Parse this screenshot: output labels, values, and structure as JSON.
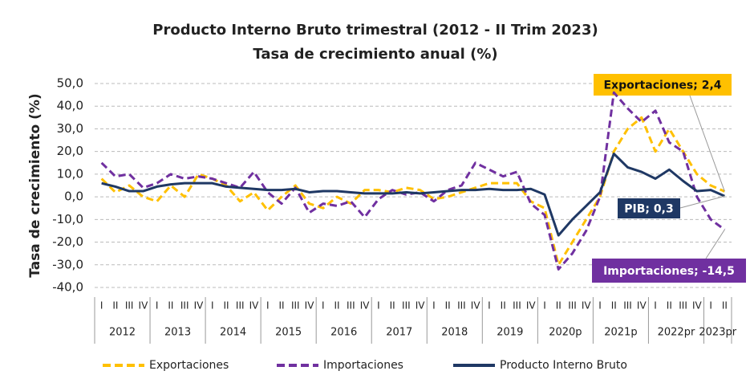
{
  "chart_data": {
    "type": "line",
    "title": "Producto Interno Bruto trimestral (2012 - II Trim 2023)",
    "subtitle": "Tasa de crecimiento anual (%)",
    "y_label": "Tasa de crecimiento (%)",
    "categories": [
      "I",
      "II",
      "III",
      "IV",
      "I",
      "II",
      "III",
      "IV",
      "I",
      "II",
      "III",
      "IV",
      "I",
      "II",
      "III",
      "IV",
      "I",
      "II",
      "III",
      "IV",
      "I",
      "II",
      "III",
      "IV",
      "I",
      "II",
      "III",
      "IV",
      "I",
      "II",
      "III",
      "IV",
      "I",
      "II",
      "III",
      "IV",
      "I",
      "II",
      "III",
      "IV",
      "I",
      "II",
      "III",
      "IV",
      "I",
      "II"
    ],
    "category_groups": [
      {
        "label": "2012",
        "count": 4
      },
      {
        "label": "2013",
        "count": 4
      },
      {
        "label": "2014",
        "count": 4
      },
      {
        "label": "2015",
        "count": 4
      },
      {
        "label": "2016",
        "count": 4
      },
      {
        "label": "2017",
        "count": 4
      },
      {
        "label": "2018",
        "count": 4
      },
      {
        "label": "2019",
        "count": 4
      },
      {
        "label": "2020p",
        "count": 4
      },
      {
        "label": "2021p",
        "count": 4
      },
      {
        "label": "2022pr",
        "count": 4
      },
      {
        "label": "2023pr",
        "count": 2
      }
    ],
    "ylim": [
      -40,
      50
    ],
    "yticks": [
      {
        "value": -40,
        "label": "-40,0"
      },
      {
        "value": -30,
        "label": "-30,0"
      },
      {
        "value": -20,
        "label": "-20,0"
      },
      {
        "value": -10,
        "label": "-10,0"
      },
      {
        "value": 0,
        "label": "0,0"
      },
      {
        "value": 10,
        "label": "10,0"
      },
      {
        "value": 20,
        "label": "20,0"
      },
      {
        "value": 30,
        "label": "30,0"
      },
      {
        "value": 40,
        "label": "40,0"
      },
      {
        "value": 50,
        "label": "50,0"
      }
    ],
    "grid": true,
    "legend": "bottom",
    "series": [
      {
        "name": "Exportaciones",
        "color": "#ffc000",
        "dashed": true,
        "values": [
          8,
          2,
          5,
          0,
          -2,
          5,
          0,
          10,
          8,
          5,
          -2,
          2,
          -6,
          0,
          5,
          -3,
          -5,
          0,
          -3,
          3,
          3,
          2,
          4,
          3,
          -1,
          0,
          2,
          4,
          6,
          6,
          6,
          -2,
          -5,
          -30,
          -20,
          -10,
          0,
          20,
          30,
          35,
          20,
          30,
          20,
          10,
          5,
          2.4
        ],
        "value_labels": [
          null,
          null,
          null,
          null,
          null,
          null,
          null,
          null,
          null,
          null,
          null,
          null,
          null,
          null,
          null,
          null,
          null,
          null,
          null,
          null,
          null,
          null,
          null,
          null,
          null,
          null,
          null,
          null,
          null,
          null,
          null,
          null,
          null,
          null,
          null,
          null,
          null,
          null,
          null,
          null,
          null,
          null,
          null,
          null,
          null,
          "Exportaciones; 2,4"
        ]
      },
      {
        "name": "Importaciones",
        "color": "#7030a0",
        "dashed": true,
        "values": [
          15,
          9,
          10,
          4,
          6,
          10,
          8,
          9,
          8,
          6,
          4,
          11,
          2,
          -3,
          4,
          -7,
          -3,
          -4,
          -2,
          -9,
          -1,
          3,
          1,
          2,
          -2,
          3,
          5,
          15,
          12,
          9,
          11,
          -3,
          -8,
          -32,
          -25,
          -15,
          0,
          46,
          39,
          33,
          38,
          24,
          20,
          0,
          -10,
          -14.5
        ],
        "value_labels": [
          null,
          null,
          null,
          null,
          null,
          null,
          null,
          null,
          null,
          null,
          null,
          null,
          null,
          null,
          null,
          null,
          null,
          null,
          null,
          null,
          null,
          null,
          null,
          null,
          null,
          null,
          null,
          null,
          null,
          null,
          null,
          null,
          null,
          null,
          null,
          null,
          null,
          null,
          null,
          null,
          null,
          null,
          null,
          null,
          null,
          "Importaciones; -14,5"
        ]
      },
      {
        "name": "Producto Interno Bruto",
        "color": "#1f3864",
        "dashed": false,
        "values": [
          6,
          4.5,
          2.5,
          2.5,
          4.5,
          5.5,
          6,
          6,
          6,
          4.5,
          4,
          3.5,
          3,
          3,
          3.5,
          2,
          2.5,
          2.5,
          2,
          1.5,
          1.5,
          1.5,
          2,
          1.5,
          2,
          2.5,
          3,
          3,
          3.5,
          3,
          3,
          3.5,
          1,
          -17,
          -10,
          -4,
          2,
          19,
          13,
          11,
          8,
          12,
          7,
          2.5,
          3,
          0.3
        ],
        "value_labels": [
          null,
          null,
          null,
          null,
          null,
          null,
          null,
          null,
          null,
          null,
          null,
          null,
          null,
          null,
          null,
          null,
          null,
          null,
          null,
          null,
          null,
          null,
          null,
          null,
          null,
          null,
          null,
          null,
          null,
          null,
          null,
          null,
          null,
          null,
          null,
          null,
          null,
          null,
          null,
          null,
          null,
          null,
          null,
          null,
          null,
          "PIB; 0,3"
        ]
      }
    ]
  }
}
